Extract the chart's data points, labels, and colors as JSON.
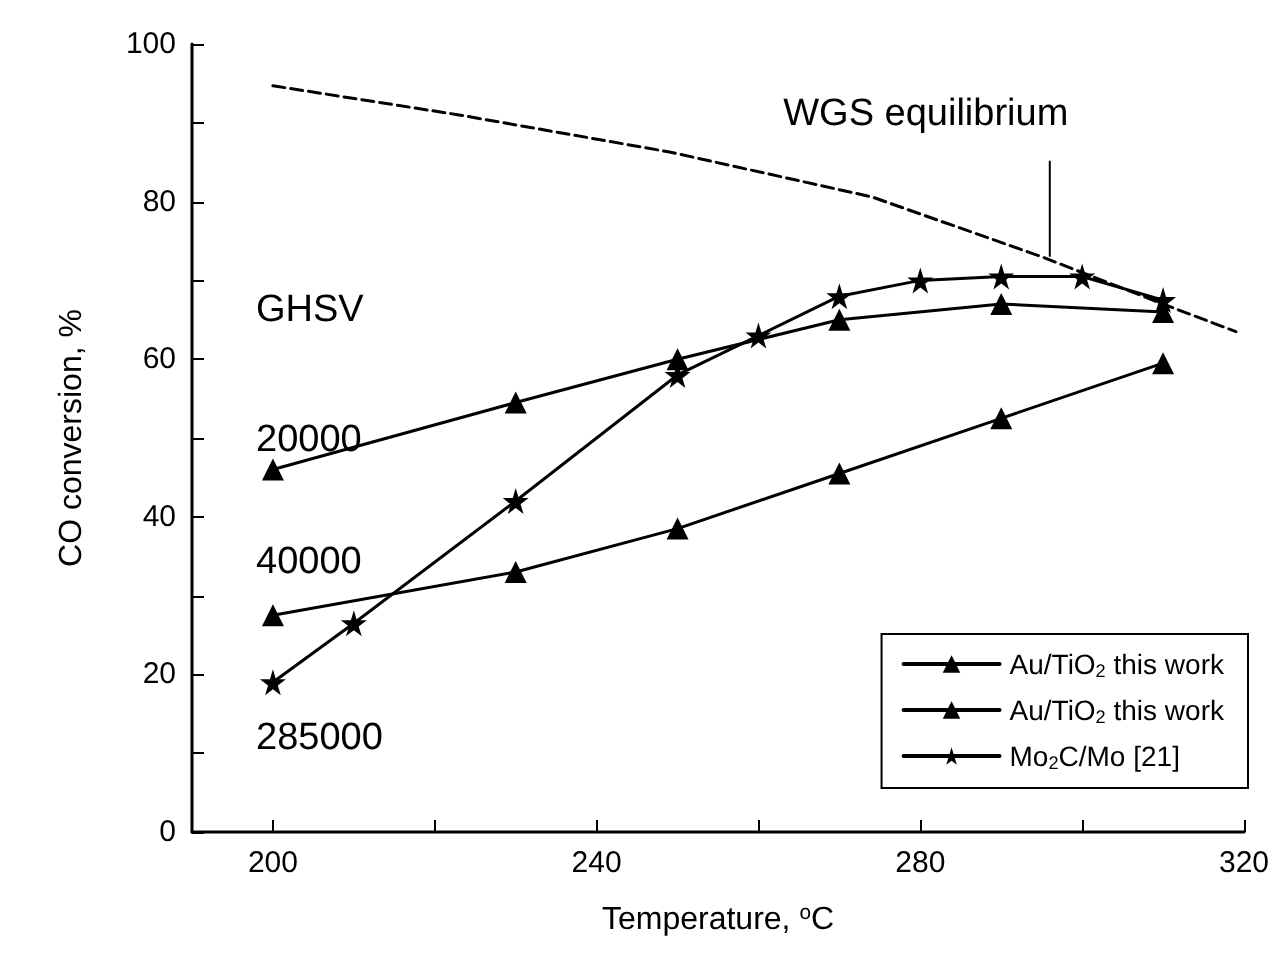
{
  "chart_data": {
    "type": "line",
    "xlabel": "Temperature, $^{o}$C",
    "ylabel": "CO conversion, %",
    "xlim": [
      190,
      320
    ],
    "xticks": [
      200,
      {
        "value": 220,
        "label": null
      },
      240,
      {
        "value": 260,
        "label": null
      },
      280,
      {
        "value": 300,
        "label": null
      },
      320
    ],
    "ylim": [
      0,
      100
    ],
    "yticks": [
      0,
      {
        "value": 10,
        "label": null
      },
      20,
      {
        "value": 30,
        "label": null
      },
      40,
      {
        "value": 50,
        "label": null
      },
      60,
      {
        "value": 70,
        "label": null
      },
      80,
      {
        "value": 90,
        "label": null
      },
      100
    ],
    "grid": false,
    "legend": "bottom right",
    "series": [
      {
        "name": "Au/TiO$_{2}$ this work",
        "color": "#000000",
        "marker": "triangle",
        "x": [
          200,
          230,
          250,
          270,
          290,
          310
        ],
        "values": [
          46,
          54.5,
          60,
          65,
          67,
          66
        ]
      },
      {
        "name": "Au/TiO$_{2}$ this work",
        "color": "#000000",
        "marker": "triangle",
        "x": [
          200,
          230,
          250,
          270,
          290,
          310
        ],
        "values": [
          27.5,
          33,
          38.5,
          45.5,
          52.5,
          59.5
        ]
      },
      {
        "name": "Mo$_{2}$C/Mo [21]",
        "color": "#000000",
        "marker": "star",
        "x": [
          200,
          210,
          230,
          250,
          260,
          270,
          280,
          290,
          300,
          310
        ],
        "values": [
          19,
          26.5,
          42,
          58,
          63,
          68,
          70,
          70.5,
          70.5,
          67.5
        ]
      },
      {
        "color": "#000000",
        "marker": "none",
        "line_style": "dashed",
        "x": [
          200,
          223,
          249,
          274,
          295,
          310,
          319
        ],
        "values": [
          94.7,
          91,
          86.3,
          80.6,
          73,
          67,
          63.5
        ]
      }
    ],
    "annotations": [
      {
        "text": "WGS equilibrium",
        "x": 296,
        "y": 73
      },
      "GHSV",
      "20000",
      "40000",
      "285000"
    ]
  }
}
